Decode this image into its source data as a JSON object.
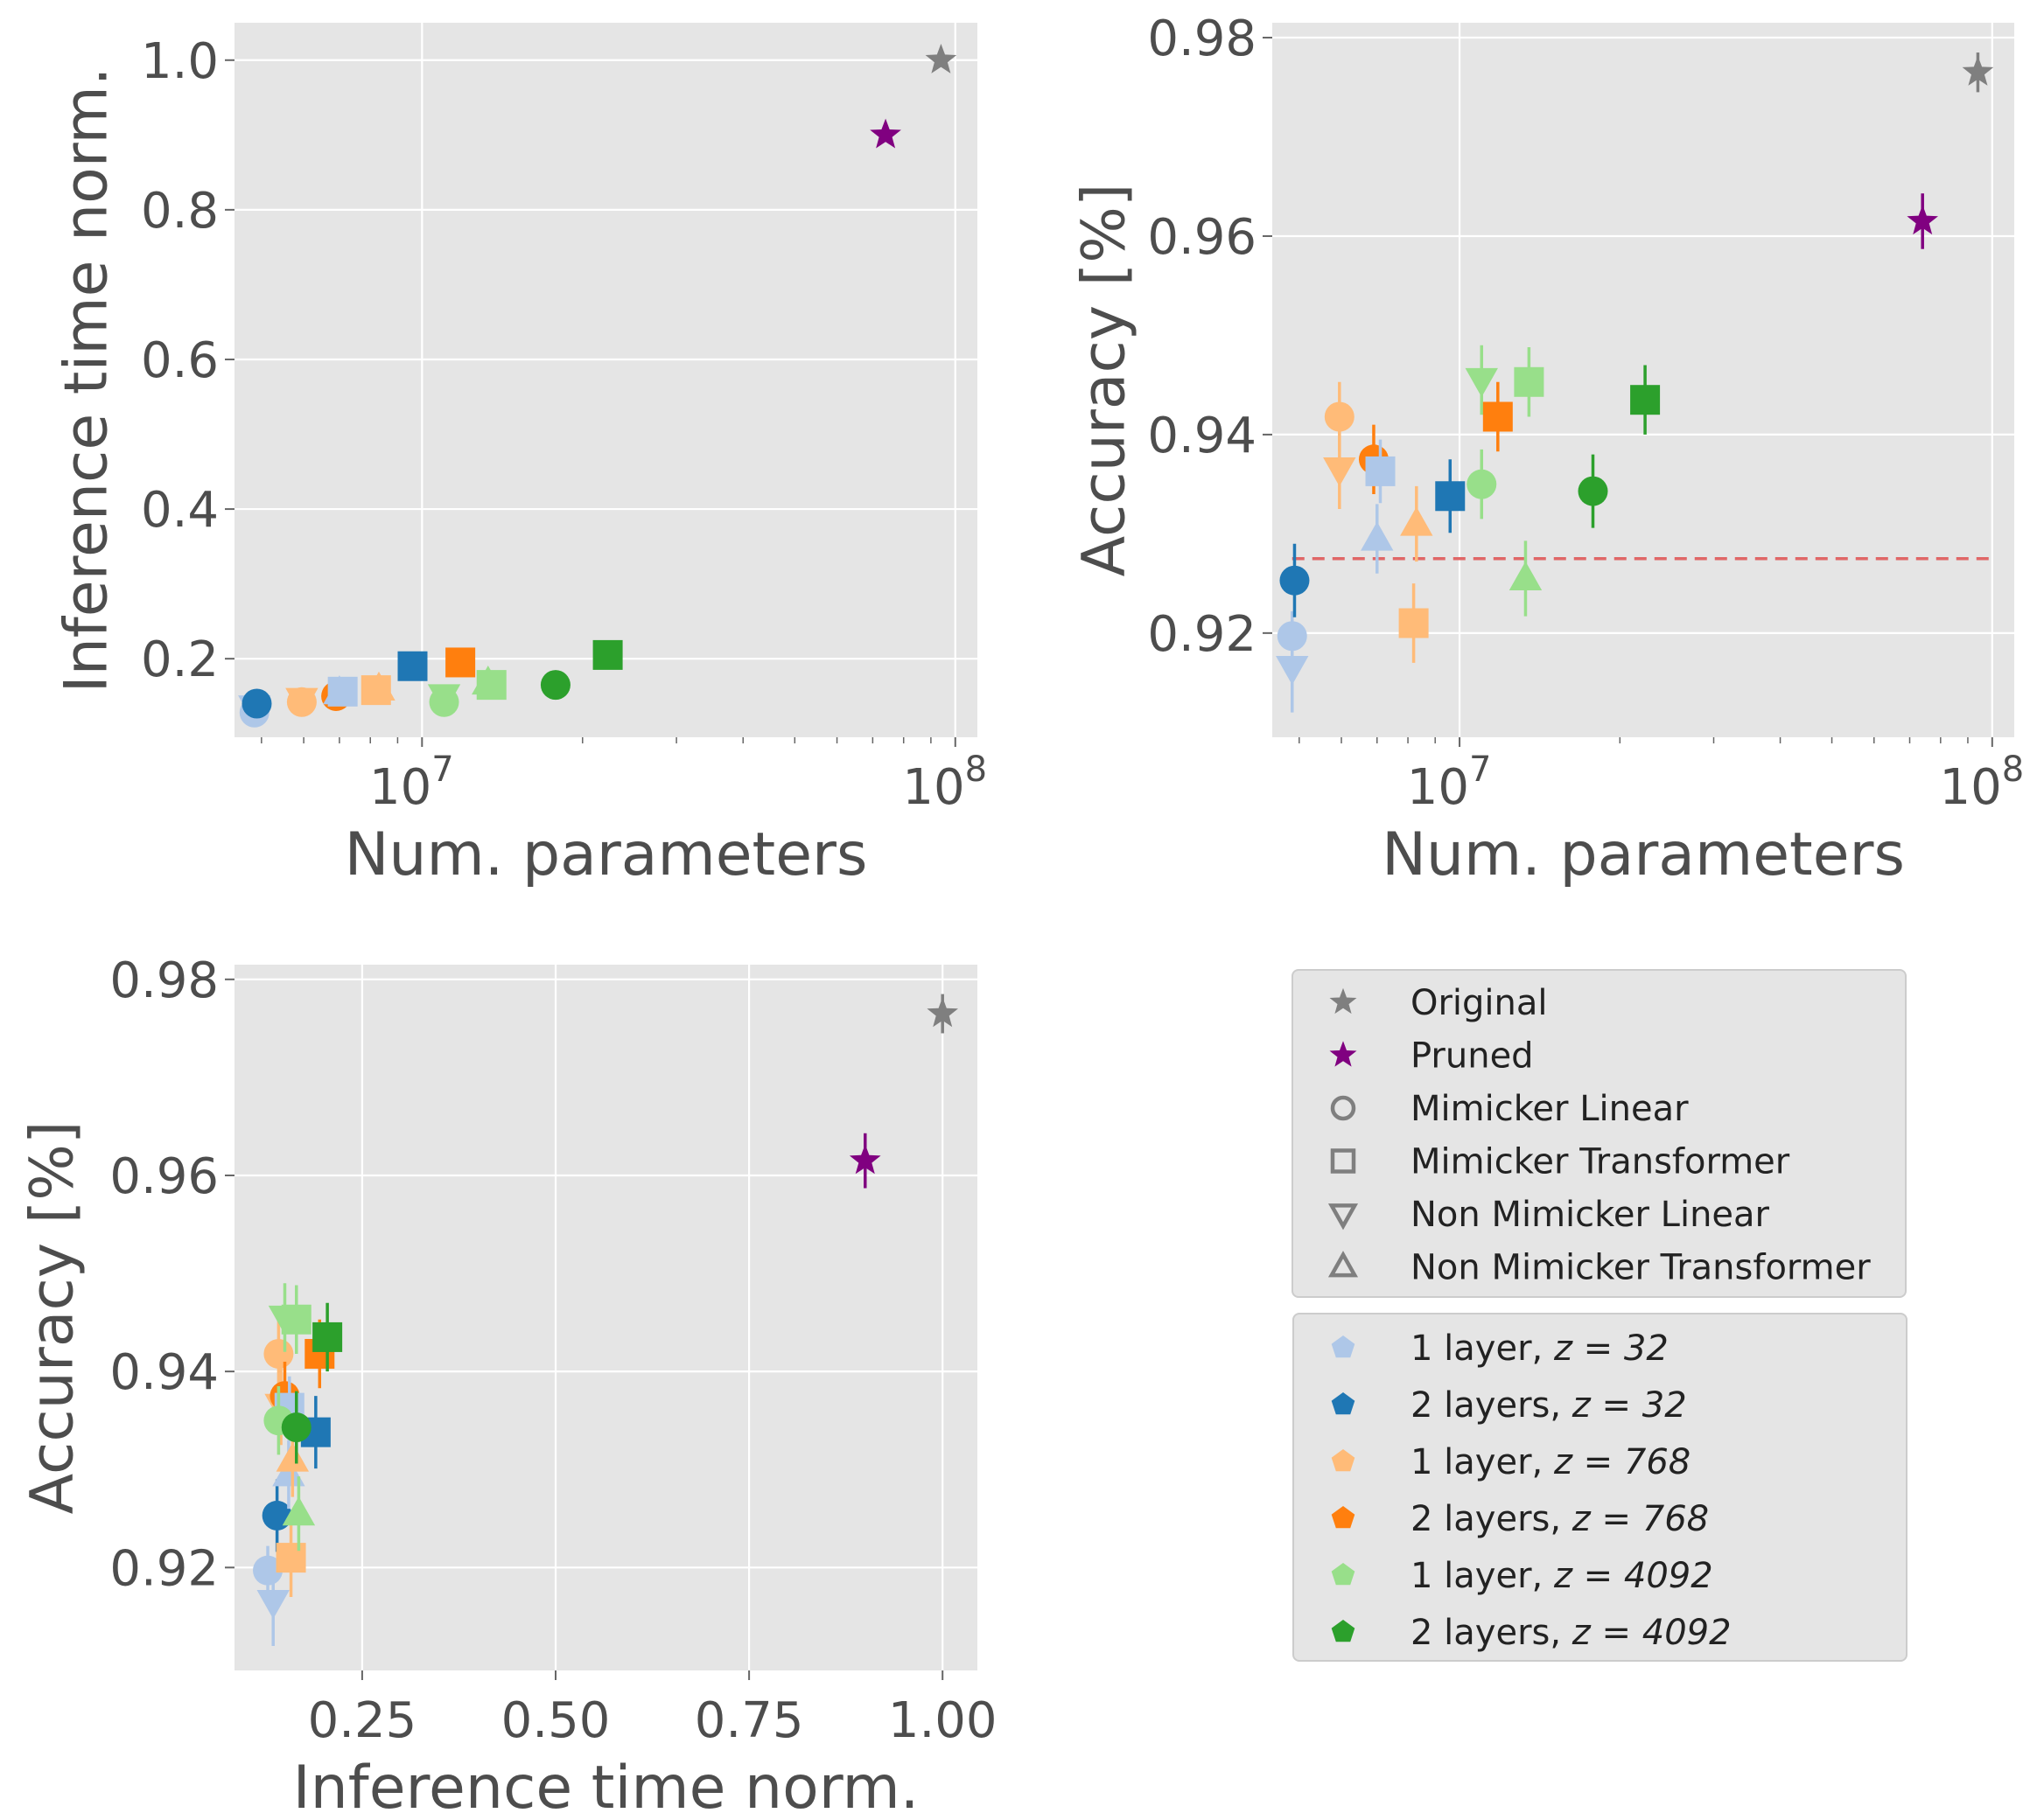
{
  "colors": {
    "background": "#e5e5e5",
    "grid": "#ffffff",
    "baseline": "#e06666",
    "Original": "#7f7f7f",
    "Pruned": "#800080",
    "1 layer, z=32": "#aec7e8",
    "2 layers, z=32": "#1f77b4",
    "1 layer, z=768": "#ffbb78",
    "2 layers, z=768": "#ff7f0e",
    "1 layer, z=4092": "#98df8a",
    "2 layers, z=4092": "#2ca02c"
  },
  "legend": {
    "methods": [
      {
        "label": "Original",
        "marker": "star",
        "color": "#7f7f7f"
      },
      {
        "label": "Pruned",
        "marker": "star",
        "color": "#800080"
      },
      {
        "label": "Mimicker Linear",
        "marker": "circle"
      },
      {
        "label": "Mimicker Transformer",
        "marker": "square"
      },
      {
        "label": "Non Mimicker Linear",
        "marker": "tri_down"
      },
      {
        "label": "Non Mimicker Transformer",
        "marker": "tri_up"
      }
    ],
    "configs": [
      {
        "label": "1 layer,",
        "math": "z = 32",
        "color": "#aec7e8"
      },
      {
        "label": "2 layers,",
        "math": "z = 32",
        "color": "#1f77b4"
      },
      {
        "label": "1 layer,",
        "math": "z = 768",
        "color": "#ffbb78"
      },
      {
        "label": "2 layers,",
        "math": "z = 768",
        "color": "#ff7f0e"
      },
      {
        "label": "1 layer,",
        "math": "z = 4092",
        "color": "#98df8a"
      },
      {
        "label": "2 layers,",
        "math": "z = 4092",
        "color": "#2ca02c"
      }
    ]
  },
  "chart_data": [
    {
      "type": "scatter",
      "id": "params-vs-time",
      "xlabel": "Num. parameters",
      "ylabel": "Inference time norm.",
      "xscale": "log",
      "xlim": [
        4450000,
        110000000
      ],
      "ylim": [
        0.095,
        1.05
      ],
      "xticks": [
        {
          "value": 10000000,
          "label": "10",
          "exp": "7"
        },
        {
          "value": 100000000,
          "label": "10",
          "exp": "8"
        }
      ],
      "yticks": [
        {
          "value": 0.2,
          "label": "0.2"
        },
        {
          "value": 0.4,
          "label": "0.4"
        },
        {
          "value": 0.6,
          "label": "0.6"
        },
        {
          "value": 0.8,
          "label": "0.8"
        },
        {
          "value": 1.0,
          "label": "1.0"
        }
      ],
      "points": [
        {
          "series": "Original",
          "marker": "star",
          "color": "#7f7f7f",
          "x": 94000000,
          "y": 1.0
        },
        {
          "series": "Pruned",
          "marker": "star",
          "color": "#800080",
          "x": 74000000,
          "y": 0.9
        },
        {
          "series": "Non Mimicker Linear, 1 layer z=32",
          "marker": "tri_down",
          "color": "#aec7e8",
          "x": 4850000,
          "y": 0.135
        },
        {
          "series": "Mimicker Linear, 1 layer z=32",
          "marker": "circle",
          "color": "#aec7e8",
          "x": 4850000,
          "y": 0.128
        },
        {
          "series": "Mimicker Linear, 2 layers z=32",
          "marker": "circle",
          "color": "#1f77b4",
          "x": 4900000,
          "y": 0.14
        },
        {
          "series": "Mimicker Linear, 1 layer z=768",
          "marker": "circle",
          "color": "#ffbb78",
          "x": 5950000,
          "y": 0.142
        },
        {
          "series": "Non Mimicker Linear, 1 layer z=768",
          "marker": "tri_down",
          "color": "#ffbb78",
          "x": 5950000,
          "y": 0.145
        },
        {
          "series": "Mimicker Linear, 2 layers z=768",
          "marker": "circle",
          "color": "#ff7f0e",
          "x": 6900000,
          "y": 0.15
        },
        {
          "series": "Non Mimicker Transformer, 1 layer z=32",
          "marker": "tri_up",
          "color": "#aec7e8",
          "x": 7000000,
          "y": 0.155
        },
        {
          "series": "Mimicker Transformer, 1 layer z=32",
          "marker": "square",
          "color": "#aec7e8",
          "x": 7100000,
          "y": 0.156
        },
        {
          "series": "Non Mimicker Transformer, 1 layer z=768",
          "marker": "tri_up",
          "color": "#ffbb78",
          "x": 8300000,
          "y": 0.16
        },
        {
          "series": "Mimicker Transformer, 1 layer z=768",
          "marker": "square",
          "color": "#ffbb78",
          "x": 8200000,
          "y": 0.158
        },
        {
          "series": "Mimicker Transformer, 2 layers z=32",
          "marker": "square",
          "color": "#1f77b4",
          "x": 9600000,
          "y": 0.19
        },
        {
          "series": "Mimicker Linear, 1 layer z=4092",
          "marker": "circle",
          "color": "#98df8a",
          "x": 11000000,
          "y": 0.142
        },
        {
          "series": "Non Mimicker Linear, 1 layer z=4092",
          "marker": "tri_down",
          "color": "#98df8a",
          "x": 11000000,
          "y": 0.15
        },
        {
          "series": "Mimicker Transformer, 2 layers z=768",
          "marker": "square",
          "color": "#ff7f0e",
          "x": 11800000,
          "y": 0.195
        },
        {
          "series": "Non Mimicker Transformer, 1 layer z=4092",
          "marker": "tri_up",
          "color": "#98df8a",
          "x": 13300000,
          "y": 0.168
        },
        {
          "series": "Mimicker Transformer, 1 layer z=4092",
          "marker": "square",
          "color": "#98df8a",
          "x": 13500000,
          "y": 0.165
        },
        {
          "series": "Mimicker Linear, 2 layers z=4092",
          "marker": "circle",
          "color": "#2ca02c",
          "x": 17800000,
          "y": 0.165
        },
        {
          "series": "Mimicker Transformer, 2 layers z=4092",
          "marker": "square",
          "color": "#2ca02c",
          "x": 22300000,
          "y": 0.205
        }
      ]
    },
    {
      "type": "scatter",
      "id": "params-vs-accuracy",
      "xlabel": "Num. parameters",
      "ylabel": "Accuracy [%]",
      "xscale": "log",
      "xlim": [
        4450000,
        110000000
      ],
      "ylim": [
        0.9095,
        0.9815
      ],
      "baseline": {
        "y": 0.9275,
        "xmin": 4850000,
        "xmax": 100000000,
        "style": "dashed"
      },
      "xticks": [
        {
          "value": 10000000,
          "label": "10",
          "exp": "7"
        },
        {
          "value": 100000000,
          "label": "10",
          "exp": "8"
        }
      ],
      "yticks": [
        {
          "value": 0.92,
          "label": "0.92"
        },
        {
          "value": 0.94,
          "label": "0.94"
        },
        {
          "value": 0.96,
          "label": "0.96"
        },
        {
          "value": 0.98,
          "label": "0.98"
        }
      ],
      "points": [
        {
          "series": "Original",
          "marker": "star",
          "color": "#7f7f7f",
          "x": 94000000,
          "y": 0.9765,
          "err": 0.002
        },
        {
          "series": "Pruned",
          "marker": "star",
          "color": "#800080",
          "x": 74000000,
          "y": 0.9615,
          "err": 0.0028
        },
        {
          "series": "Non Mimicker Linear, 1 layer z=32",
          "marker": "tri_down",
          "color": "#aec7e8",
          "x": 4850000,
          "y": 0.9165,
          "err": 0.0045
        },
        {
          "series": "Mimicker Linear, 1 layer z=32",
          "marker": "circle",
          "color": "#aec7e8",
          "x": 4850000,
          "y": 0.9197,
          "err": 0.0025
        },
        {
          "series": "Mimicker Linear, 2 layers z=32",
          "marker": "circle",
          "color": "#1f77b4",
          "x": 4900000,
          "y": 0.9253,
          "err": 0.0037
        },
        {
          "series": "Mimicker Linear, 1 layer z=768",
          "marker": "circle",
          "color": "#ffbb78",
          "x": 5950000,
          "y": 0.9418,
          "err": 0.0035
        },
        {
          "series": "Non Mimicker Linear, 1 layer z=768",
          "marker": "tri_down",
          "color": "#ffbb78",
          "x": 5950000,
          "y": 0.9365,
          "err": 0.004
        },
        {
          "series": "Mimicker Linear, 2 layers z=768",
          "marker": "circle",
          "color": "#ff7f0e",
          "x": 6900000,
          "y": 0.9375,
          "err": 0.0035
        },
        {
          "series": "Non Mimicker Transformer, 1 layer z=32",
          "marker": "tri_up",
          "color": "#aec7e8",
          "x": 7000000,
          "y": 0.9295,
          "err": 0.0035
        },
        {
          "series": "Mimicker Transformer, 1 layer z=32",
          "marker": "square",
          "color": "#aec7e8",
          "x": 7100000,
          "y": 0.9363,
          "err": 0.0032
        },
        {
          "series": "Non Mimicker Transformer, 1 layer z=768",
          "marker": "tri_up",
          "color": "#ffbb78",
          "x": 8300000,
          "y": 0.931,
          "err": 0.0038
        },
        {
          "series": "Mimicker Transformer, 1 layer z=768",
          "marker": "square",
          "color": "#ffbb78",
          "x": 8200000,
          "y": 0.921,
          "err": 0.004
        },
        {
          "series": "Mimicker Transformer, 2 layers z=32",
          "marker": "square",
          "color": "#1f77b4",
          "x": 9600000,
          "y": 0.9338,
          "err": 0.0037
        },
        {
          "series": "Mimicker Linear, 1 layer z=4092",
          "marker": "circle",
          "color": "#98df8a",
          "x": 11000000,
          "y": 0.935,
          "err": 0.0035
        },
        {
          "series": "Non Mimicker Linear, 1 layer z=4092",
          "marker": "tri_down",
          "color": "#98df8a",
          "x": 11000000,
          "y": 0.9455,
          "err": 0.0035
        },
        {
          "series": "Mimicker Transformer, 2 layers z=768",
          "marker": "square",
          "color": "#ff7f0e",
          "x": 11800000,
          "y": 0.9418,
          "err": 0.0035
        },
        {
          "series": "Non Mimicker Transformer, 1 layer z=4092",
          "marker": "tri_up",
          "color": "#98df8a",
          "x": 13300000,
          "y": 0.9255,
          "err": 0.0038
        },
        {
          "series": "Mimicker Transformer, 1 layer z=4092",
          "marker": "square",
          "color": "#98df8a",
          "x": 13500000,
          "y": 0.9453,
          "err": 0.0035
        },
        {
          "series": "Mimicker Linear, 2 layers z=4092",
          "marker": "circle",
          "color": "#2ca02c",
          "x": 17800000,
          "y": 0.9343,
          "err": 0.0037
        },
        {
          "series": "Mimicker Transformer, 2 layers z=4092",
          "marker": "square",
          "color": "#2ca02c",
          "x": 22300000,
          "y": 0.9435,
          "err": 0.0035
        }
      ]
    },
    {
      "type": "scatter",
      "id": "time-vs-accuracy",
      "xlabel": "Inference time norm.",
      "ylabel": "Accuracy [%]",
      "xscale": "linear",
      "xlim": [
        0.085,
        1.045
      ],
      "ylim": [
        0.9095,
        0.9815
      ],
      "xticks": [
        {
          "value": 0.25,
          "label": "0.25"
        },
        {
          "value": 0.5,
          "label": "0.50"
        },
        {
          "value": 0.75,
          "label": "0.75"
        },
        {
          "value": 1.0,
          "label": "1.00"
        }
      ],
      "yticks": [
        {
          "value": 0.92,
          "label": "0.92"
        },
        {
          "value": 0.94,
          "label": "0.94"
        },
        {
          "value": 0.96,
          "label": "0.96"
        },
        {
          "value": 0.98,
          "label": "0.98"
        }
      ],
      "points": [
        {
          "series": "Original",
          "marker": "star",
          "color": "#7f7f7f",
          "x": 1.0,
          "y": 0.9765,
          "err": 0.002
        },
        {
          "series": "Pruned",
          "marker": "star",
          "color": "#800080",
          "x": 0.9,
          "y": 0.9615,
          "err": 0.0028
        },
        {
          "series": "Non Mimicker Linear, 1 layer z=32",
          "marker": "tri_down",
          "color": "#aec7e8",
          "x": 0.135,
          "y": 0.9165,
          "err": 0.0045
        },
        {
          "series": "Mimicker Linear, 1 layer z=32",
          "marker": "circle",
          "color": "#aec7e8",
          "x": 0.128,
          "y": 0.9197,
          "err": 0.0025
        },
        {
          "series": "Mimicker Linear, 2 layers z=32",
          "marker": "circle",
          "color": "#1f77b4",
          "x": 0.14,
          "y": 0.9253,
          "err": 0.0037
        },
        {
          "series": "Mimicker Linear, 1 layer z=768",
          "marker": "circle",
          "color": "#ffbb78",
          "x": 0.142,
          "y": 0.9418,
          "err": 0.0035
        },
        {
          "series": "Non Mimicker Linear, 1 layer z=768",
          "marker": "tri_down",
          "color": "#ffbb78",
          "x": 0.145,
          "y": 0.9365,
          "err": 0.004
        },
        {
          "series": "Mimicker Linear, 2 layers z=768",
          "marker": "circle",
          "color": "#ff7f0e",
          "x": 0.15,
          "y": 0.9375,
          "err": 0.0035
        },
        {
          "series": "Non Mimicker Transformer, 1 layer z=32",
          "marker": "tri_up",
          "color": "#aec7e8",
          "x": 0.155,
          "y": 0.9295,
          "err": 0.0035
        },
        {
          "series": "Mimicker Transformer, 1 layer z=32",
          "marker": "square",
          "color": "#aec7e8",
          "x": 0.156,
          "y": 0.9363,
          "err": 0.0032
        },
        {
          "series": "Non Mimicker Transformer, 1 layer z=768",
          "marker": "tri_up",
          "color": "#ffbb78",
          "x": 0.16,
          "y": 0.931,
          "err": 0.0038
        },
        {
          "series": "Mimicker Transformer, 1 layer z=768",
          "marker": "square",
          "color": "#ffbb78",
          "x": 0.158,
          "y": 0.921,
          "err": 0.004
        },
        {
          "series": "Mimicker Transformer, 2 layers z=32",
          "marker": "square",
          "color": "#1f77b4",
          "x": 0.19,
          "y": 0.9338,
          "err": 0.0037
        },
        {
          "series": "Mimicker Linear, 1 layer z=4092",
          "marker": "circle",
          "color": "#98df8a",
          "x": 0.142,
          "y": 0.935,
          "err": 0.0035
        },
        {
          "series": "Non Mimicker Linear, 1 layer z=4092",
          "marker": "tri_down",
          "color": "#98df8a",
          "x": 0.15,
          "y": 0.9455,
          "err": 0.0035
        },
        {
          "series": "Mimicker Transformer, 2 layers z=768",
          "marker": "square",
          "color": "#ff7f0e",
          "x": 0.195,
          "y": 0.9418,
          "err": 0.0035
        },
        {
          "series": "Non Mimicker Transformer, 1 layer z=4092",
          "marker": "tri_up",
          "color": "#98df8a",
          "x": 0.168,
          "y": 0.9255,
          "err": 0.0038
        },
        {
          "series": "Mimicker Transformer, 1 layer z=4092",
          "marker": "square",
          "color": "#98df8a",
          "x": 0.165,
          "y": 0.9453,
          "err": 0.0035
        },
        {
          "series": "Mimicker Linear, 2 layers z=4092",
          "marker": "circle",
          "color": "#2ca02c",
          "x": 0.165,
          "y": 0.9343,
          "err": 0.0037
        },
        {
          "series": "Mimicker Transformer, 2 layers z=4092",
          "marker": "square",
          "color": "#2ca02c",
          "x": 0.205,
          "y": 0.9435,
          "err": 0.0035
        }
      ]
    }
  ]
}
